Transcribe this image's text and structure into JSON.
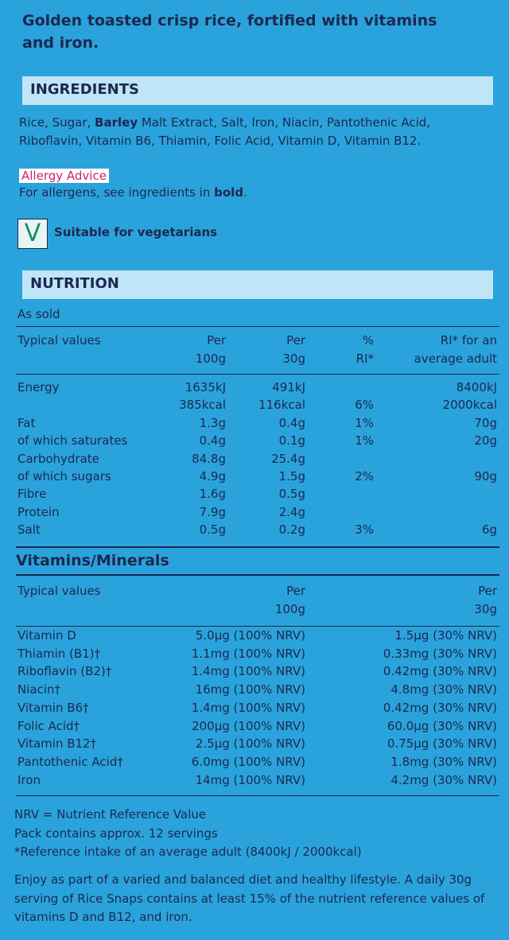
{
  "description": "Golden toasted crisp rice, fortified with vitamins and iron.",
  "ingredients": {
    "heading": "INGREDIENTS",
    "text": [
      "Rice, Sugar, ",
      "Barley",
      " Malt Extract, Salt, Iron, Niacin, Pantothenic Acid, Riboflavin, Vitamin B6, Thiamin, Folic Acid, Vitamin D, Vitamin B12."
    ]
  },
  "allergy": {
    "heading": "Allergy Advice",
    "text": [
      "For allergens, see ingredients in ",
      "bold",
      "."
    ]
  },
  "vegetarian": {
    "icon": "V",
    "label": "Suitable for vegetarians"
  },
  "nutrition": {
    "heading": "NUTRITION",
    "subheading": "As sold",
    "columns": [
      [
        "Typical values"
      ],
      [
        "Per",
        "100g"
      ],
      [
        "Per",
        "30g"
      ],
      [
        "%",
        "RI*"
      ],
      [
        "RI* for an",
        "average adult"
      ]
    ],
    "rows": [
      [
        "Energy",
        "1635kJ",
        "491kJ",
        null,
        "8400kJ"
      ],
      [
        null,
        "385kcal",
        "116kcal",
        "6%",
        "2000kcal"
      ],
      [
        "Fat",
        "1.3g",
        "0.4g",
        "1%",
        "70g"
      ],
      [
        "of which saturates",
        "0.4g",
        "0.1g",
        "1%",
        "20g"
      ],
      [
        "Carbohydrate",
        "84.8g",
        "25.4g",
        null,
        null
      ],
      [
        "of which sugars",
        "4.9g",
        "1.5g",
        "2%",
        "90g"
      ],
      [
        "Fibre",
        "1.6g",
        "0.5g",
        null,
        null
      ],
      [
        "Protein",
        "7.9g",
        "2.4g",
        null,
        null
      ],
      [
        "Salt",
        "0.5g",
        "0.2g",
        "3%",
        "6g"
      ]
    ]
  },
  "vitamins": {
    "heading": "Vitamins/Minerals",
    "columns": [
      [
        "Typical values"
      ],
      [
        "Per",
        "100g"
      ],
      [
        "Per",
        "30g"
      ]
    ],
    "rows": [
      [
        "Vitamin D",
        "5.0µg (100% NRV)",
        "1.5µg (30% NRV)"
      ],
      [
        "Thiamin (B1)†",
        "1.1mg (100% NRV)",
        "0.33mg (30% NRV)"
      ],
      [
        "Riboflavin (B2)†",
        "1.4mg (100% NRV)",
        "0.42mg (30% NRV)"
      ],
      [
        "Niacin†",
        "16mg (100% NRV)",
        "4.8mg (30% NRV)"
      ],
      [
        "Vitamin B6†",
        "1.4mg (100% NRV)",
        "0.42mg (30% NRV)"
      ],
      [
        "Folic Acid†",
        "200µg (100% NRV)",
        "60.0µg (30% NRV)"
      ],
      [
        "Vitamin B12†",
        "2.5µg (100% NRV)",
        "0.75µg (30% NRV)"
      ],
      [
        "Pantothenic Acid†",
        "6.0mg (100% NRV)",
        "1.8mg (30% NRV)"
      ],
      [
        "Iron",
        "14mg (100% NRV)",
        "4.2mg (30% NRV)"
      ]
    ]
  },
  "notes": [
    "NRV = Nutrient Reference Value",
    "Pack contains approx. 12 servings",
    "*Reference intake of an average adult (8400kJ / 2000kcal)"
  ],
  "advice": "Enjoy as part of a varied and balanced diet and healthy lifestyle. A daily 30g serving of Rice Snaps contains at least 15% of the nutrient reference values of vitamins D and B12, and iron."
}
